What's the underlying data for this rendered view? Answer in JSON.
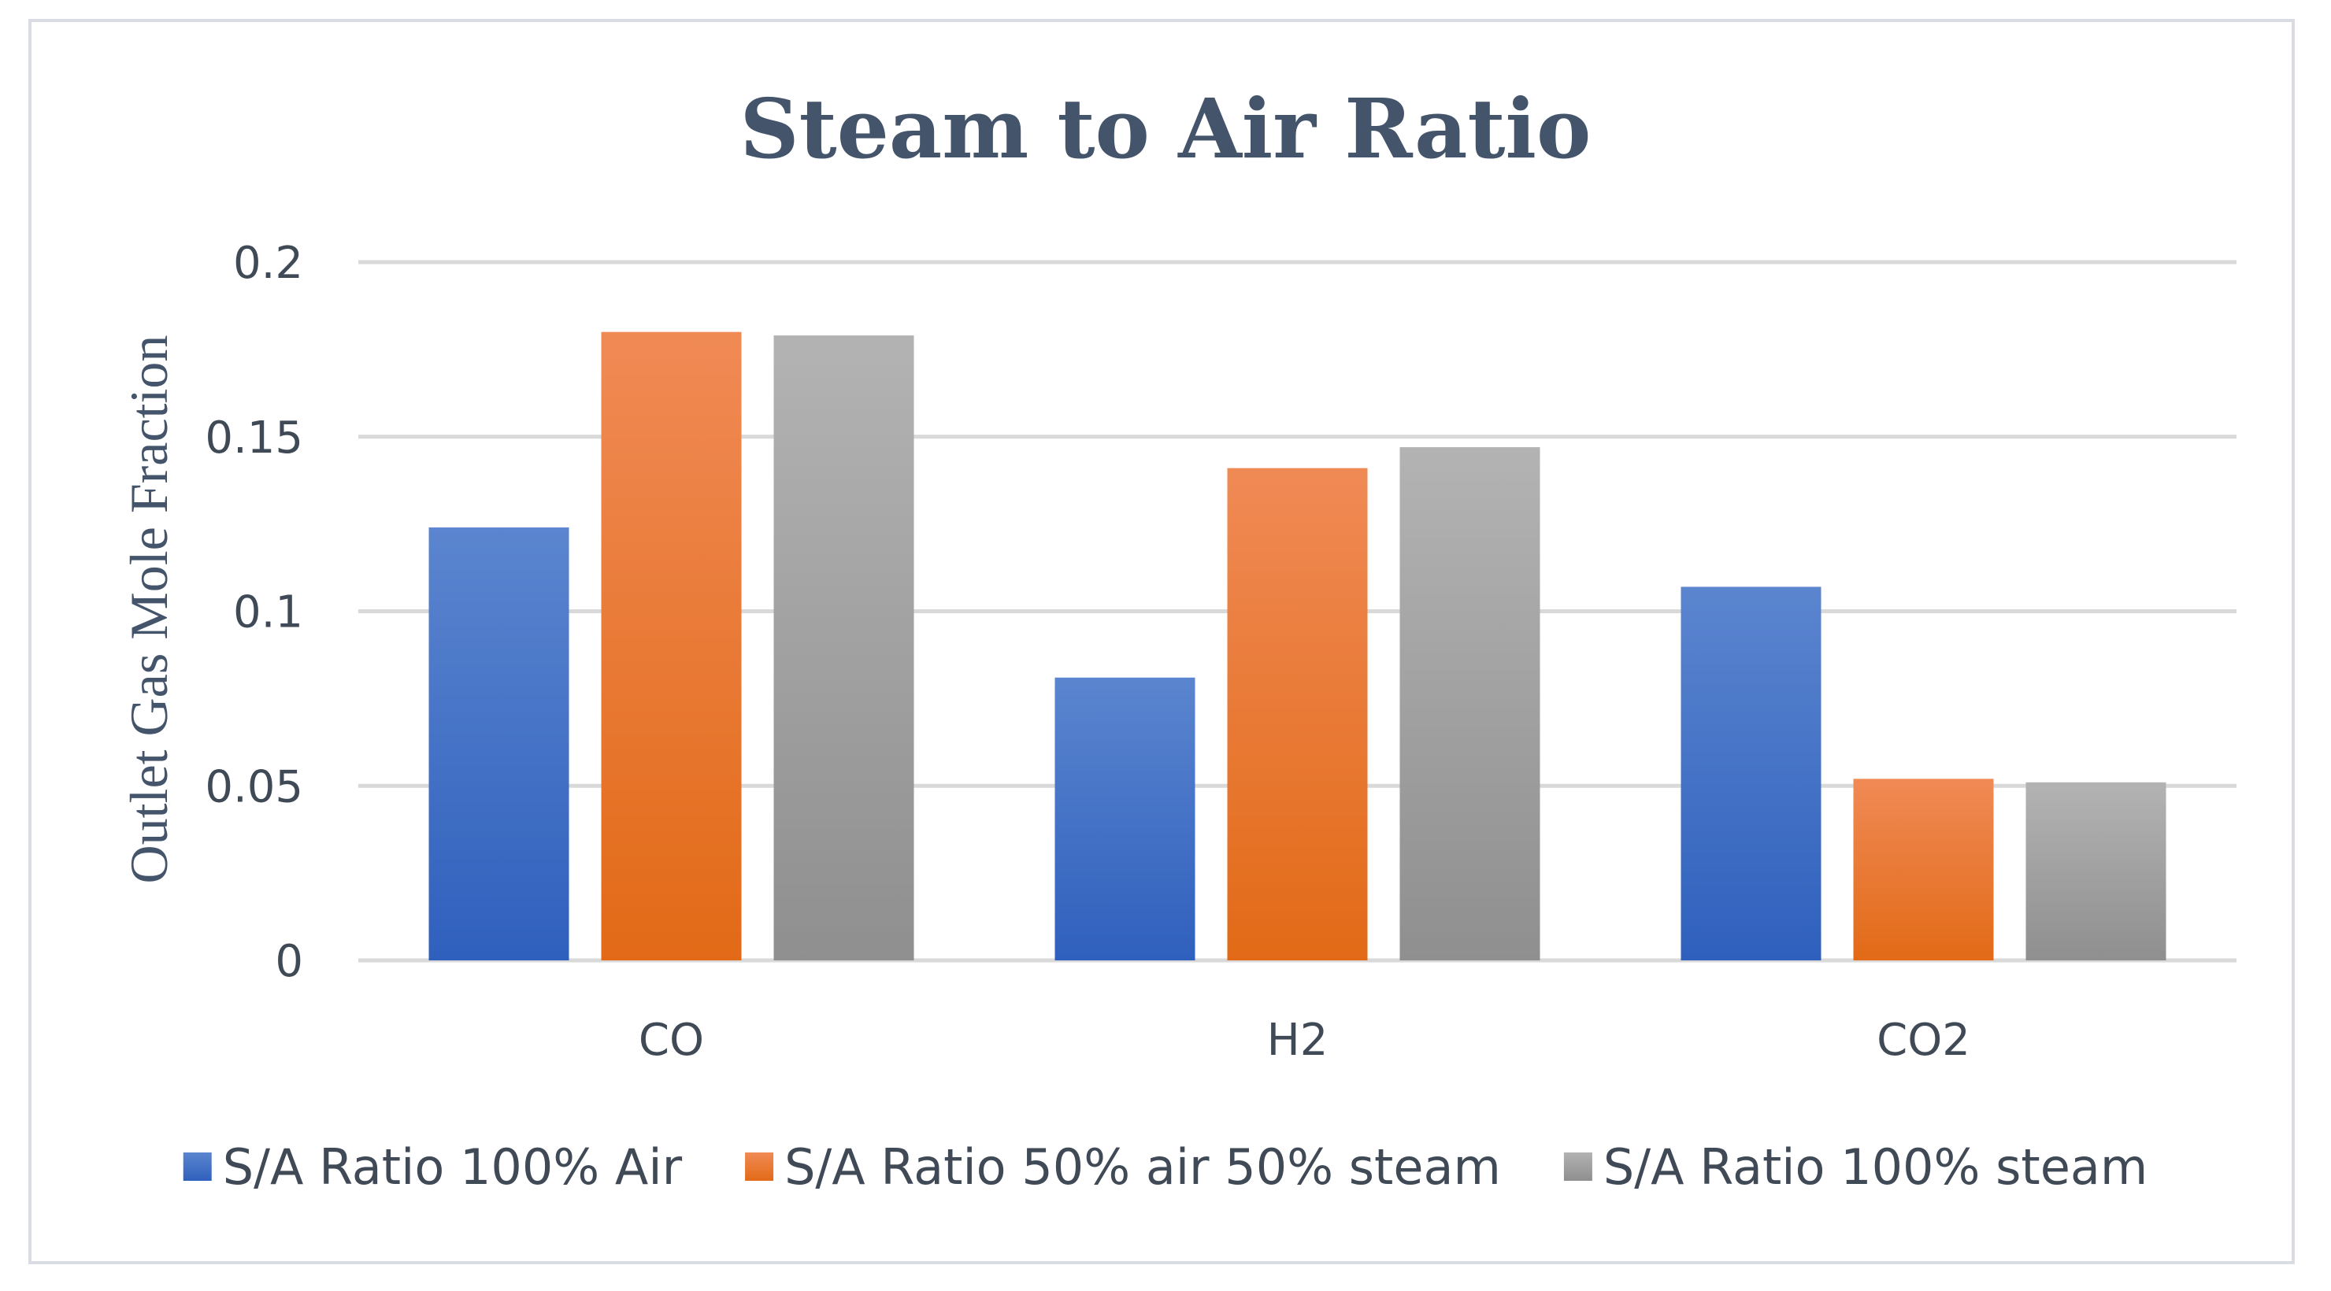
{
  "chart_data": {
    "type": "bar",
    "title": "Steam to Air Ratio",
    "xlabel": "",
    "ylabel": "Outlet Gas Mole Fraction",
    "categories": [
      "CO",
      "H2",
      "CO2"
    ],
    "series": [
      {
        "name": "S/A Ratio 100% Air",
        "values": [
          0.124,
          0.081,
          0.107
        ],
        "color_top": "#5b85cf",
        "color_bottom": "#2f60bd"
      },
      {
        "name": "S/A Ratio 50% air 50% steam",
        "values": [
          0.18,
          0.141,
          0.052
        ],
        "color_top": "#f08a55",
        "color_bottom": "#e26a17"
      },
      {
        "name": "S/A Ratio 100% steam",
        "values": [
          0.179,
          0.147,
          0.051
        ],
        "color_top": "#b3b3b3",
        "color_bottom": "#8f8f8f"
      }
    ],
    "ylim": [
      0,
      0.2
    ],
    "yticks": [
      0,
      0.05,
      0.1,
      0.15,
      0.2
    ],
    "ytick_labels": [
      "0",
      "0.05",
      "0.1",
      "0.15",
      "0.2"
    ],
    "grid": true,
    "legend_position": "bottom"
  },
  "colors": {
    "title": "#44546a",
    "gridline": "#d9d9d9",
    "axis_text": "#404a56",
    "frame_border": "#d9dde3"
  }
}
